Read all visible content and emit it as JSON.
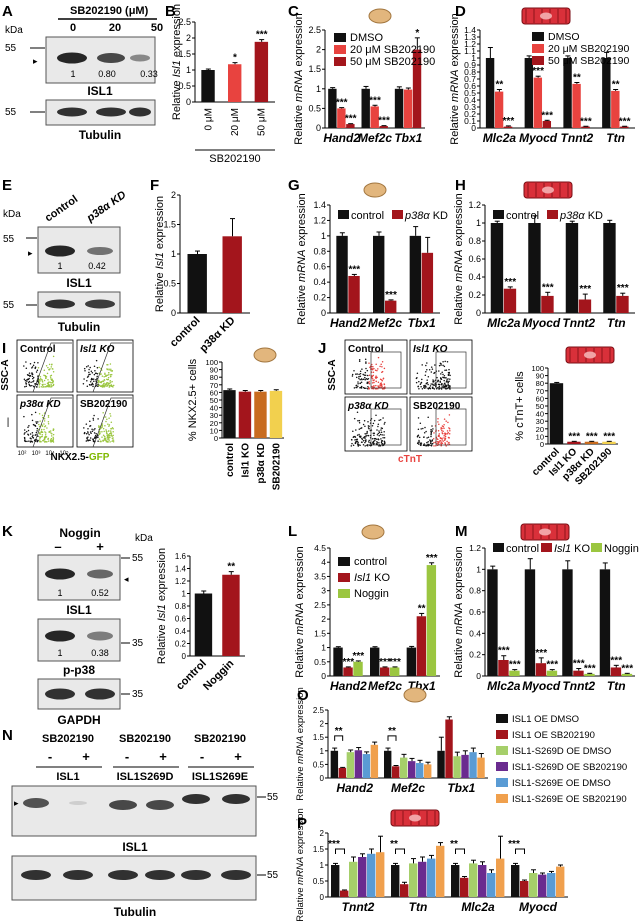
{
  "colors": {
    "black": "#111111",
    "red": "#e8433f",
    "darkred": "#a3151c",
    "orange": "#c86b1e",
    "yellow": "#f2d04e",
    "green": "#9bc640",
    "purple": "#6a2b8f",
    "blue": "#5a9bd4",
    "lightgreen": "#a6cf6a",
    "lightorange": "#f0a04d",
    "tan": "#e2b67d",
    "cellred": "#d9303a"
  },
  "panels": {
    "A": {
      "letter": "A",
      "kda": "kDa",
      "conc_title": "SB202190 (μM)",
      "lanes": [
        "0",
        "20",
        "50"
      ],
      "ratios": [
        "1",
        "0.80",
        "0.33"
      ],
      "marker1": "55",
      "marker2": "55",
      "protein": "ISL1",
      "loading": "Tubulin"
    },
    "E": {
      "letter": "E",
      "kda": "kDa",
      "lanes": [
        "control",
        "p38α KD"
      ],
      "ratios": [
        "1",
        "0.42"
      ],
      "marker1": "55",
      "marker2": "55",
      "protein": "ISL1",
      "loading": "Tubulin"
    },
    "I": {
      "letter": "I",
      "plots": [
        "Control",
        "Isl1 KO",
        "p38α KD",
        "SB202190"
      ],
      "ylab": "SSC-A",
      "xlab_a": "NKX2.5-",
      "xlab_b": "GFP",
      "ticks": [
        "10²",
        "10³",
        "10⁴",
        "10⁵"
      ]
    },
    "J": {
      "letter": "J",
      "plots": [
        "Control",
        "Isl1 KO",
        "p38α KD",
        "SB202190"
      ],
      "ylab": "SSC-A",
      "xlab": "cTnT",
      "ticks": [
        "10²",
        "10³",
        "10⁴",
        "10⁵"
      ]
    },
    "K": {
      "letter": "K",
      "title": "Noggin",
      "minus": "–",
      "plus": "+",
      "kda": "kDa",
      "m1": "55",
      "m2": "35",
      "m3": "35",
      "r1": [
        "1",
        "0.52"
      ],
      "r2": [
        "1",
        "0.38"
      ],
      "p1": "ISL1",
      "p2": "p-p38",
      "p3": "GAPDH"
    },
    "N": {
      "letter": "N",
      "groups": [
        "SB202190",
        "SB202190",
        "SB202190"
      ],
      "signs": [
        "-",
        "+",
        "-",
        "+",
        "-",
        "+"
      ],
      "constructs": [
        "ISL1",
        "ISL1S269D",
        "ISL1S269E"
      ],
      "m1": "55",
      "m2": "55",
      "protein": "ISL1",
      "loading": "Tubulin"
    }
  },
  "chart_data": [
    {
      "panel": "B",
      "type": "bar",
      "categories": [
        "0 μM",
        "20 μM",
        "50 μM"
      ],
      "values": [
        1.0,
        1.18,
        1.88
      ],
      "errors": [
        0.03,
        0.05,
        0.07
      ],
      "sig": [
        "",
        "*",
        "***"
      ],
      "ylabel": "Relative Isl1 expression",
      "ylim": [
        0,
        2.5
      ],
      "yticks": [
        0,
        0.5,
        1,
        1.5,
        2,
        2.5
      ],
      "group_label": "SB202190"
    },
    {
      "panel": "C",
      "type": "bar",
      "categories": [
        "Hand2",
        "Mef2c",
        "Tbx1"
      ],
      "series": [
        {
          "name": "DMSO",
          "values": [
            1.0,
            1.0,
            1.0
          ],
          "errors": [
            0.03,
            0.06,
            0.05
          ],
          "sig": [
            "",
            "",
            ""
          ]
        },
        {
          "name": "20 μM SB202190",
          "values": [
            0.5,
            0.55,
            0.98
          ],
          "errors": [
            0.02,
            0.03,
            0.04
          ],
          "sig": [
            "***",
            "***",
            ""
          ]
        },
        {
          "name": "50 μM SB202190",
          "values": [
            0.1,
            0.05,
            2.0
          ],
          "errors": [
            0.01,
            0.01,
            0.3
          ],
          "sig": [
            "***",
            "***",
            "*"
          ]
        }
      ],
      "ylabel": "Relative mRNA expression",
      "ylim": [
        0,
        2.5
      ],
      "yticks": [
        0,
        0.5,
        1,
        1.5,
        2,
        2.5
      ]
    },
    {
      "panel": "D",
      "type": "bar",
      "categories": [
        "Mlc2a",
        "Myocd",
        "Tnnt2",
        "Ttn"
      ],
      "series": [
        {
          "name": "DMSO",
          "values": [
            1.0,
            1.0,
            1.0,
            1.0
          ],
          "errors": [
            0.15,
            0.03,
            0.03,
            0.08
          ],
          "sig": [
            "",
            "",
            "",
            ""
          ]
        },
        {
          "name": "20 μM SB202190",
          "values": [
            0.52,
            0.72,
            0.63,
            0.53
          ],
          "errors": [
            0.03,
            0.02,
            0.02,
            0.02
          ],
          "sig": [
            "**",
            "***",
            "**",
            "**"
          ]
        },
        {
          "name": "50 μM SB202190",
          "values": [
            0.02,
            0.1,
            0.02,
            0.02
          ],
          "errors": [
            0.01,
            0.01,
            0.005,
            0.005
          ],
          "sig": [
            "***",
            "***",
            "***",
            "***"
          ]
        }
      ],
      "ylabel": "Relative mRNA expression",
      "ylim": [
        0,
        1.4
      ],
      "yticks": [
        0,
        0.1,
        0.2,
        0.3,
        0.4,
        0.5,
        0.6,
        0.7,
        0.8,
        0.9,
        1,
        1.1,
        1.2,
        1.3,
        1.4
      ]
    },
    {
      "panel": "F",
      "type": "bar",
      "categories": [
        "control",
        "p38α KD"
      ],
      "values": [
        1.0,
        1.3
      ],
      "errors": [
        0.05,
        0.3
      ],
      "ylabel": "Relative Isl1 expression",
      "ylim": [
        0,
        2
      ],
      "yticks": [
        0,
        0.5,
        1,
        1.5,
        2
      ]
    },
    {
      "panel": "G",
      "type": "bar",
      "categories": [
        "Hand2",
        "Mef2c",
        "Tbx1"
      ],
      "series": [
        {
          "name": "control",
          "values": [
            1.0,
            1.0,
            1.0
          ],
          "errors": [
            0.04,
            0.05,
            0.12
          ],
          "sig": [
            "",
            "",
            ""
          ]
        },
        {
          "name": "p38α KD",
          "values": [
            0.48,
            0.16,
            0.78
          ],
          "errors": [
            0.02,
            0.01,
            0.2
          ],
          "sig": [
            "***",
            "***",
            ""
          ]
        }
      ],
      "ylabel": "Relative mRNA expression",
      "ylim": [
        0,
        1.4
      ],
      "yticks": [
        0,
        0.2,
        0.4,
        0.6,
        0.8,
        1,
        1.2,
        1.4
      ]
    },
    {
      "panel": "H",
      "type": "bar",
      "categories": [
        "Mlc2a",
        "Myocd",
        "Tnnt2",
        "Ttn"
      ],
      "series": [
        {
          "name": "control",
          "values": [
            1.0,
            1.0,
            1.0,
            1.0
          ],
          "errors": [
            0.02,
            0.08,
            0.02,
            0.03
          ],
          "sig": [
            "",
            "",
            "",
            ""
          ]
        },
        {
          "name": "p38α KD",
          "values": [
            0.27,
            0.19,
            0.15,
            0.19
          ],
          "errors": [
            0.02,
            0.04,
            0.06,
            0.03
          ],
          "sig": [
            "***",
            "***",
            "***",
            "***"
          ]
        }
      ],
      "ylabel": "Relative mRNA expression",
      "ylim": [
        0,
        1.2
      ],
      "yticks": [
        0,
        0.2,
        0.4,
        0.6,
        0.8,
        1,
        1.2
      ]
    },
    {
      "panel": "I",
      "type": "bar",
      "categories": [
        "control",
        "Isl1 KO",
        "p38α KD",
        "SB202190"
      ],
      "values": [
        63,
        61,
        61,
        62
      ],
      "errors": [
        1.5,
        1.5,
        1.5,
        1.5
      ],
      "sig": [
        "",
        "",
        "",
        ""
      ],
      "ylabel": "% NKX2.5+ cells",
      "ylim": [
        0,
        100
      ],
      "yticks": [
        0,
        10,
        20,
        30,
        40,
        50,
        60,
        70,
        80,
        90,
        100
      ]
    },
    {
      "panel": "J",
      "type": "bar",
      "categories": [
        "control",
        "Isl1 KO",
        "p38α KD",
        "SB202190"
      ],
      "values": [
        80,
        3,
        3,
        3
      ],
      "errors": [
        1,
        0.5,
        0.5,
        0.5
      ],
      "sig": [
        "",
        "***",
        "***",
        "***"
      ],
      "ylabel": "% cTnT+ cells",
      "ylim": [
        0,
        100
      ],
      "yticks": [
        0,
        10,
        20,
        30,
        40,
        50,
        60,
        70,
        80,
        90,
        100
      ]
    },
    {
      "panel": "K",
      "type": "bar",
      "categories": [
        "control",
        "Noggin"
      ],
      "values": [
        1.0,
        1.3
      ],
      "errors": [
        0.04,
        0.05
      ],
      "sig": [
        "",
        "**"
      ],
      "ylabel": "Relative Isl1 expression",
      "ylim": [
        0,
        1.6
      ],
      "yticks": [
        0,
        0.2,
        0.4,
        0.6,
        0.8,
        1,
        1.2,
        1.4,
        1.6
      ]
    },
    {
      "panel": "L",
      "type": "bar",
      "categories": [
        "Hand2",
        "Mef2c",
        "Tbx1"
      ],
      "series": [
        {
          "name": "control",
          "values": [
            1.0,
            1.0,
            1.0
          ],
          "errors": [
            0.03,
            0.03,
            0.04
          ],
          "sig": [
            "",
            "",
            ""
          ]
        },
        {
          "name": "Isl1 KO",
          "values": [
            0.3,
            0.3,
            2.1
          ],
          "errors": [
            0.02,
            0.02,
            0.1
          ],
          "sig": [
            "***",
            "***",
            "**"
          ]
        },
        {
          "name": "Noggin",
          "values": [
            0.5,
            0.3,
            3.9
          ],
          "errors": [
            0.03,
            0.02,
            0.08
          ],
          "sig": [
            "***",
            "***",
            "***"
          ]
        }
      ],
      "ylabel": "Relative mRNA expression",
      "ylim": [
        0,
        4.5
      ],
      "yticks": [
        0,
        0.5,
        1,
        1.5,
        2,
        2.5,
        3,
        3.5,
        4,
        4.5
      ]
    },
    {
      "panel": "M",
      "type": "bar",
      "categories": [
        "Mlc2a",
        "Myocd",
        "Tnnt2",
        "Ttn"
      ],
      "series": [
        {
          "name": "control",
          "values": [
            1.0,
            1.0,
            1.0,
            1.0
          ],
          "errors": [
            0.03,
            0.1,
            0.08,
            0.06
          ],
          "sig": [
            "",
            "",
            "",
            ""
          ]
        },
        {
          "name": "Isl1 KO",
          "values": [
            0.15,
            0.12,
            0.05,
            0.08
          ],
          "errors": [
            0.04,
            0.05,
            0.02,
            0.02
          ],
          "sig": [
            "***",
            "***",
            "***",
            "***"
          ]
        },
        {
          "name": "Noggin",
          "values": [
            0.05,
            0.05,
            0.02,
            0.02
          ],
          "errors": [
            0.01,
            0.01,
            0.005,
            0.005
          ],
          "sig": [
            "***",
            "***",
            "***",
            "***"
          ]
        }
      ],
      "ylabel": "Relative mRNA expression",
      "ylim": [
        0,
        1.2
      ],
      "yticks": [
        0,
        0.2,
        0.4,
        0.6,
        0.8,
        1,
        1.2
      ]
    },
    {
      "panel": "O",
      "type": "bar",
      "categories": [
        "Hand2",
        "Mef2c",
        "Tbx1"
      ],
      "series": [
        {
          "name": "ISL1 OE DMSO",
          "values": [
            1.0,
            1.0,
            1.0
          ],
          "errors": [
            0.1,
            0.1,
            0.5
          ]
        },
        {
          "name": "ISL1 OE SB202190",
          "values": [
            0.37,
            0.43,
            2.15
          ],
          "errors": [
            0.02,
            0.03,
            0.1
          ]
        },
        {
          "name": "ISL1-S269D OE DMSO",
          "values": [
            0.95,
            0.75,
            0.8
          ],
          "errors": [
            0.08,
            0.12,
            0.15
          ]
        },
        {
          "name": "ISL1-S269D OE SB202190",
          "values": [
            1.02,
            0.62,
            0.85
          ],
          "errors": [
            0.1,
            0.1,
            0.15
          ]
        },
        {
          "name": "ISL1-S269E OE DMSO",
          "values": [
            0.88,
            0.55,
            0.95
          ],
          "errors": [
            0.08,
            0.1,
            0.15
          ]
        },
        {
          "name": "ISL1-S269E OE SB202190",
          "values": [
            1.22,
            0.5,
            0.75
          ],
          "errors": [
            0.1,
            0.08,
            0.15
          ]
        }
      ],
      "sig": [
        [
          "**",
          0,
          1
        ],
        [
          "**",
          0,
          1
        ]
      ],
      "ylabel": "Relative mRNA expression",
      "ylim": [
        0,
        2.5
      ],
      "yticks": [
        0,
        0.5,
        1,
        1.5,
        2,
        2.5
      ]
    },
    {
      "panel": "P",
      "type": "bar",
      "categories": [
        "Tnnt2",
        "Ttn",
        "Mlc2a",
        "Myocd"
      ],
      "series": [
        {
          "name": "ISL1 OE DMSO",
          "values": [
            1.0,
            1.0,
            1.0,
            1.0
          ],
          "errors": [
            0.05,
            0.05,
            0.05,
            0.05
          ]
        },
        {
          "name": "ISL1 OE SB202190",
          "values": [
            0.2,
            0.4,
            0.6,
            0.5
          ],
          "errors": [
            0.02,
            0.06,
            0.04,
            0.03
          ]
        },
        {
          "name": "ISL1-S269D OE DMSO",
          "values": [
            1.1,
            1.05,
            1.05,
            0.75
          ],
          "errors": [
            0.15,
            0.15,
            0.1,
            0.1
          ]
        },
        {
          "name": "ISL1-S269D OE SB202190",
          "values": [
            1.25,
            1.1,
            1.0,
            0.7
          ],
          "errors": [
            0.1,
            0.15,
            0.1,
            0.05
          ]
        },
        {
          "name": "ISL1-S269E OE DMSO",
          "values": [
            1.35,
            1.2,
            0.75,
            0.75
          ],
          "errors": [
            0.15,
            0.1,
            0.1,
            0.05
          ]
        },
        {
          "name": "ISL1-S269E OE SB202190",
          "values": [
            1.4,
            1.6,
            1.2,
            0.95
          ],
          "errors": [
            0.5,
            0.1,
            0.7,
            0.05
          ]
        }
      ],
      "sig": [
        [
          "***",
          0
        ],
        [
          "**",
          1
        ],
        [
          "**",
          2
        ],
        [
          "***",
          3
        ]
      ],
      "ylabel": "Relative mRNA expression",
      "ylim": [
        0,
        2
      ],
      "yticks": [
        0,
        0.5,
        1,
        1.5,
        2
      ]
    }
  ]
}
